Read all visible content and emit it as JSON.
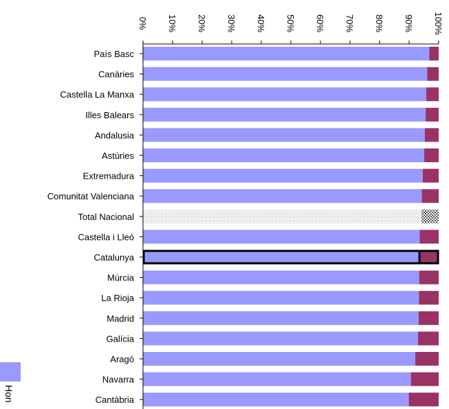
{
  "chart_data": {
    "type": "bar",
    "orientation": "horizontal",
    "stacked": "percent",
    "categories": [
      "País Basc",
      "Canàries",
      "Castella La Manxa",
      "Illes Balears",
      "Andalusia",
      "Astúries",
      "Extremadura",
      "Comunitat Valenciana",
      "Total Nacional",
      "Castella i Lleó",
      "Catalunya",
      "Múrcia",
      "La Rioja",
      "Madrid",
      "Galícia",
      "Aragó",
      "Navarra",
      "Cantàbria"
    ],
    "series": [
      {
        "name": "Hon",
        "values": [
          96.8,
          96.1,
          95.8,
          95.6,
          95.3,
          95.1,
          94.6,
          94.3,
          94.2,
          93.6,
          93.5,
          93.4,
          93.3,
          93.2,
          93.0,
          92.1,
          90.6,
          89.9
        ]
      },
      {
        "values": [
          3.2,
          3.9,
          4.2,
          4.4,
          4.7,
          4.9,
          5.4,
          5.7,
          5.8,
          6.4,
          6.5,
          6.6,
          6.7,
          6.8,
          7.0,
          7.9,
          9.4,
          10.1
        ]
      }
    ],
    "xlim": [
      0,
      100
    ],
    "x_ticks": [
      "0%",
      "10%",
      "20%",
      "30%",
      "40%",
      "50%",
      "60%",
      "70%",
      "80%",
      "90%",
      "100%"
    ],
    "axis_position": "top",
    "tick_label_rotation": 90,
    "highlighted": [
      "Catalunya"
    ],
    "patterned": [
      "Total Nacional"
    ],
    "legend": {
      "placement": "bottom-left",
      "rotated": true
    },
    "grid": false,
    "colors": {
      "series_1": "#9999ff",
      "series_2": "#993366",
      "highlight_outline": "#000000",
      "axis": "#000000"
    }
  }
}
